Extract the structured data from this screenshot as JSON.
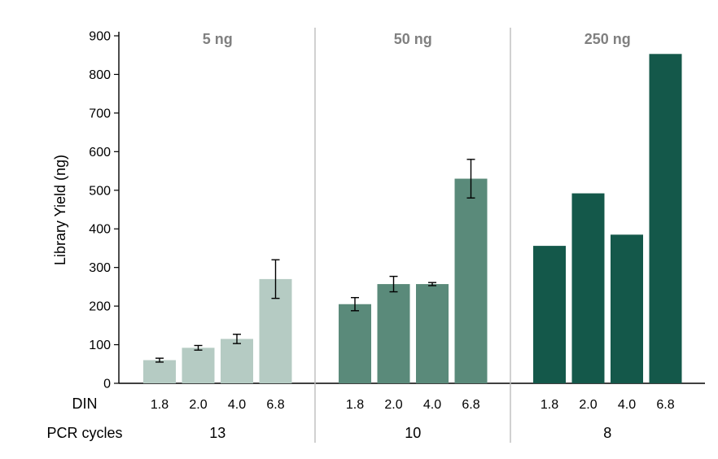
{
  "chart_data": {
    "type": "bar",
    "ylabel": "Library Yield (ng)",
    "ylim": [
      0,
      900
    ],
    "yticks": [
      0,
      100,
      200,
      300,
      400,
      500,
      600,
      700,
      800,
      900
    ],
    "grid": false,
    "row_labels": {
      "din": "DIN",
      "pcr": "PCR cycles"
    },
    "groups": [
      {
        "title": "5 ng",
        "pcr_cycles": "13",
        "color": "#b5cbc3",
        "categories": [
          "1.8",
          "2.0",
          "4.0",
          "6.8"
        ],
        "values": [
          60,
          92,
          115,
          270
        ],
        "errors": [
          5,
          6,
          12,
          50
        ]
      },
      {
        "title": "50 ng",
        "pcr_cycles": "10",
        "color": "#5a8a7a",
        "categories": [
          "1.8",
          "2.0",
          "4.0",
          "6.8"
        ],
        "values": [
          205,
          257,
          257,
          530
        ],
        "errors": [
          17,
          20,
          4,
          50
        ]
      },
      {
        "title": "250 ng",
        "pcr_cycles": "8",
        "color": "#14584a",
        "categories": [
          "1.8",
          "2.0",
          "4.0",
          "6.8"
        ],
        "values": [
          356,
          492,
          385,
          853
        ],
        "errors": [
          null,
          null,
          null,
          null
        ]
      }
    ]
  }
}
